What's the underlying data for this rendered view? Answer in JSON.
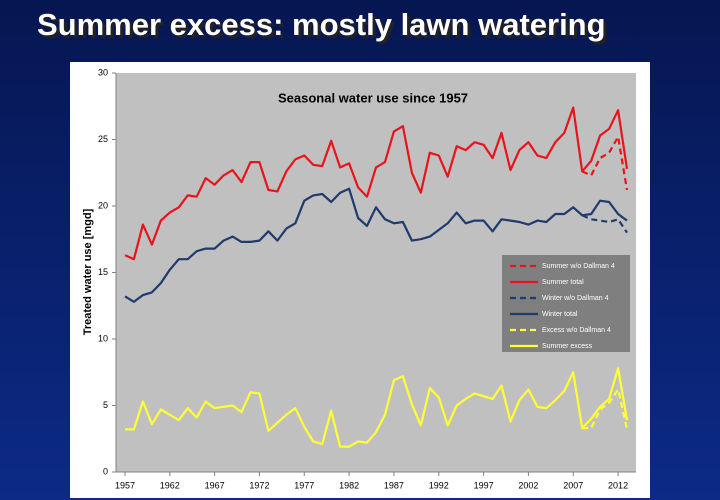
{
  "slide_title": "Summer excess: mostly lawn watering",
  "chart_data": {
    "type": "line",
    "title": "Seasonal water use since 1957",
    "y_label": "Treated water use [mgd]",
    "x": [
      1957,
      1958,
      1959,
      1960,
      1961,
      1962,
      1963,
      1964,
      1965,
      1966,
      1967,
      1968,
      1969,
      1970,
      1971,
      1972,
      1973,
      1974,
      1975,
      1976,
      1977,
      1978,
      1979,
      1980,
      1981,
      1982,
      1983,
      1984,
      1985,
      1986,
      1987,
      1988,
      1989,
      1990,
      1991,
      1992,
      1993,
      1994,
      1995,
      1996,
      1997,
      1998,
      1999,
      2000,
      2001,
      2002,
      2003,
      2004,
      2005,
      2006,
      2007,
      2008,
      2009,
      2010,
      2011,
      2012,
      2013
    ],
    "xlim": [
      1956,
      2014
    ],
    "xticks": [
      1957,
      1962,
      1967,
      1972,
      1977,
      1982,
      1987,
      1992,
      1997,
      2002,
      2007,
      2012
    ],
    "ylim": [
      0,
      30
    ],
    "yticks": [
      0,
      5,
      10,
      15,
      20,
      25,
      30
    ],
    "grid": false,
    "legend": "right",
    "series": [
      {
        "name": "Summer w/o Dallman 4",
        "color": "#e8141b",
        "dash": true,
        "values": [
          null,
          null,
          null,
          null,
          null,
          null,
          null,
          null,
          null,
          null,
          null,
          null,
          null,
          null,
          null,
          null,
          null,
          null,
          null,
          null,
          null,
          null,
          null,
          null,
          null,
          null,
          null,
          null,
          null,
          null,
          null,
          null,
          null,
          null,
          null,
          null,
          null,
          null,
          null,
          null,
          null,
          null,
          null,
          null,
          null,
          null,
          null,
          null,
          null,
          null,
          null,
          22.6,
          22.3,
          23.6,
          24.0,
          25.2,
          21.2
        ]
      },
      {
        "name": "Summer total",
        "color": "#e8141b",
        "dash": false,
        "values": [
          16.3,
          16.0,
          18.6,
          17.1,
          18.9,
          19.5,
          19.9,
          20.8,
          20.7,
          22.1,
          21.6,
          22.3,
          22.7,
          21.8,
          23.3,
          23.3,
          21.2,
          21.1,
          22.6,
          23.5,
          23.8,
          23.1,
          23.0,
          24.9,
          22.9,
          23.2,
          21.4,
          20.7,
          22.9,
          23.3,
          25.6,
          26.0,
          22.5,
          21.0,
          24.0,
          23.8,
          22.2,
          24.5,
          24.2,
          24.8,
          24.6,
          23.6,
          25.5,
          22.7,
          24.2,
          24.8,
          23.8,
          23.6,
          24.8,
          25.5,
          27.4,
          22.6,
          23.4,
          25.3,
          25.8,
          27.2,
          22.8
        ]
      },
      {
        "name": "Winter w/o Dallman 4",
        "color": "#1f3a6e",
        "dash": true,
        "values": [
          null,
          null,
          null,
          null,
          null,
          null,
          null,
          null,
          null,
          null,
          null,
          null,
          null,
          null,
          null,
          null,
          null,
          null,
          null,
          null,
          null,
          null,
          null,
          null,
          null,
          null,
          null,
          null,
          null,
          null,
          null,
          null,
          null,
          null,
          null,
          null,
          null,
          null,
          null,
          null,
          null,
          null,
          null,
          null,
          null,
          null,
          null,
          null,
          null,
          null,
          null,
          19.3,
          19.0,
          18.9,
          18.8,
          19.0,
          18.0
        ]
      },
      {
        "name": "Winter total",
        "color": "#1f3a6e",
        "dash": false,
        "values": [
          13.2,
          12.8,
          13.3,
          13.5,
          14.2,
          15.2,
          16.0,
          16.0,
          16.6,
          16.8,
          16.8,
          17.4,
          17.7,
          17.3,
          17.3,
          17.4,
          18.1,
          17.4,
          18.3,
          18.7,
          20.4,
          20.8,
          20.9,
          20.3,
          21.0,
          21.3,
          19.1,
          18.5,
          19.9,
          19.0,
          18.7,
          18.8,
          17.4,
          17.5,
          17.7,
          18.2,
          18.7,
          19.5,
          18.7,
          18.9,
          18.9,
          18.1,
          19.0,
          18.9,
          18.8,
          18.6,
          18.9,
          18.8,
          19.4,
          19.4,
          19.9,
          19.3,
          19.4,
          20.4,
          20.3,
          19.4,
          18.9
        ]
      },
      {
        "name": "Excess w/o Dallman 4",
        "color": "#ffff33",
        "dash": true,
        "values": [
          null,
          null,
          null,
          null,
          null,
          null,
          null,
          null,
          null,
          null,
          null,
          null,
          null,
          null,
          null,
          null,
          null,
          null,
          null,
          null,
          null,
          null,
          null,
          null,
          null,
          null,
          null,
          null,
          null,
          null,
          null,
          null,
          null,
          null,
          null,
          null,
          null,
          null,
          null,
          null,
          null,
          null,
          null,
          null,
          null,
          null,
          null,
          null,
          null,
          null,
          null,
          3.3,
          3.3,
          4.7,
          5.2,
          6.2,
          3.2
        ]
      },
      {
        "name": "Summer excess",
        "color": "#ffff33",
        "dash": false,
        "values": [
          3.2,
          3.2,
          5.3,
          3.6,
          4.7,
          4.3,
          3.9,
          4.8,
          4.1,
          5.3,
          4.8,
          4.9,
          5.0,
          4.5,
          6.0,
          5.9,
          3.1,
          3.7,
          4.3,
          4.8,
          3.4,
          2.3,
          2.1,
          4.6,
          1.9,
          1.9,
          2.3,
          2.2,
          3.0,
          4.3,
          6.9,
          7.2,
          5.1,
          3.5,
          6.3,
          5.6,
          3.5,
          5.0,
          5.5,
          5.9,
          5.7,
          5.5,
          6.5,
          3.8,
          5.4,
          6.2,
          4.9,
          4.8,
          5.4,
          6.1,
          7.5,
          3.3,
          4.0,
          4.9,
          5.5,
          7.8,
          3.9
        ]
      }
    ]
  }
}
